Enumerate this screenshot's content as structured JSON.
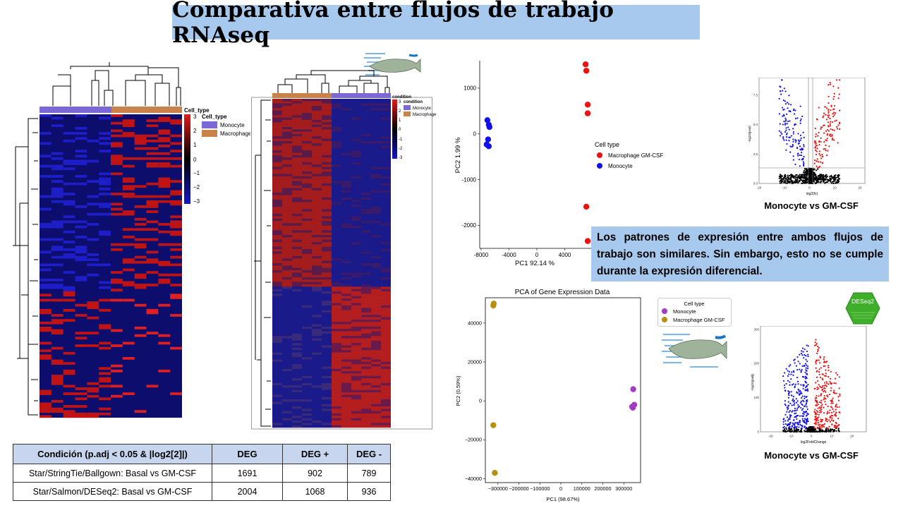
{
  "title": "Comparativa entre flujos de trabajo RNAseq",
  "heatmap1": {
    "legend_title": "Cell_type",
    "annotation_title": "Cell_type",
    "annotation_items": [
      "Monocyte",
      "Macrophage"
    ],
    "scale_ticks": [
      "3",
      "2",
      "1",
      "0",
      "−1",
      "−2",
      "−3"
    ],
    "colors": {
      "monocyte": "#7b68d6",
      "macrophage": "#c9834a",
      "high": "#e11b1b",
      "low": "#1616c4",
      "mid": "#000000"
    }
  },
  "heatmap2": {
    "legend_title": "condition",
    "annotation_title": "condition",
    "annotation_items": [
      "Monocyte",
      "Macrophage"
    ],
    "scale_ticks": [
      "3",
      "2",
      "1",
      "0",
      "-1",
      "-2",
      "-3"
    ]
  },
  "pca1": {
    "chart_data": {
      "type": "scatter",
      "xlabel": "PC1 92.14 %",
      "ylabel": "PC2 1.99 %",
      "x_ticks": [
        "-8000",
        "-4000",
        "0",
        "4000"
      ],
      "y_ticks": [
        "1000",
        "0",
        "-1000",
        "-2000"
      ],
      "xlim": [
        -8200,
        7800
      ],
      "ylim": [
        -2500,
        1600
      ],
      "legend_title": "Cell type",
      "series": [
        {
          "name": "Macrophage GM-CSF",
          "color": "#ee1111",
          "x": [
            7000,
            7100,
            7300,
            7300,
            7100,
            7300
          ],
          "y": [
            1520,
            1380,
            640,
            450,
            -1590,
            -2340
          ]
        },
        {
          "name": "Monocyte",
          "color": "#1111ee",
          "x": [
            -7100,
            -6900,
            -6800,
            -7000,
            -7200,
            -6900
          ],
          "y": [
            300,
            200,
            150,
            -120,
            -230,
            -270
          ]
        }
      ]
    }
  },
  "volcano1": {
    "caption": "Monocyte vs GM-CSF",
    "chart_data": {
      "type": "scatter",
      "xlabel": "log2(fc)",
      "ylabel": "-log10(pval)",
      "x_ticks": [
        "-20",
        "-10",
        "0",
        "10",
        "20"
      ],
      "y_ticks": [
        "0.0",
        "2.5",
        "5.0",
        "7.5"
      ],
      "xlim": [
        -20,
        22
      ],
      "ylim": [
        0,
        9
      ]
    }
  },
  "note": "Los patrones de expresión entre ambos flujos de trabajo son similares. Sin embargo, esto no se cumple durante la expresión diferencial.",
  "pca2": {
    "chart_data": {
      "type": "scatter",
      "title": "PCA of Gene Expression Data",
      "xlabel": "PC1 (98.67%)",
      "ylabel": "PC2 (0.59%)",
      "x_ticks": [
        "−300000",
        "−200000",
        "−100000",
        "0",
        "100000",
        "200000",
        "300000"
      ],
      "y_ticks": [
        "40000",
        "20000",
        "0",
        "−20000",
        "−40000"
      ],
      "xlim": [
        -360000,
        380000
      ],
      "ylim": [
        -42000,
        53000
      ],
      "legend_title": "Cell type",
      "series": [
        {
          "name": "Monocyte",
          "color": "#a23bc4",
          "x": [
            345000,
            350000,
            340000,
            343000
          ],
          "y": [
            6000,
            -2000,
            -3000,
            -3500
          ]
        },
        {
          "name": "Macrophage GM-CSF",
          "color": "#b8900f",
          "x": [
            -320000,
            -322000,
            -322000,
            -315000
          ],
          "y": [
            50000,
            49000,
            -12500,
            -37000
          ]
        }
      ]
    }
  },
  "volcano2": {
    "caption": "Monocyte vs GM-CSF",
    "badge": "DESeq2",
    "chart_data": {
      "type": "scatter",
      "xlabel": "log2FoldChange",
      "ylabel": "-log10(padj)",
      "x_ticks": [
        "-20",
        "-10",
        "0",
        "10",
        "20"
      ],
      "y_ticks": [
        "0",
        "100",
        "200",
        "300"
      ],
      "xlim": [
        -25,
        27
      ],
      "ylim": [
        0,
        310
      ]
    }
  },
  "table": {
    "headers": [
      "Condición (p.adj < 0.05 & |log2[2]|)",
      "DEG",
      "DEG +",
      "DEG -"
    ],
    "rows": [
      [
        "Star/StringTie/Ballgown: Basal vs GM-CSF",
        "1691",
        "902",
        "789"
      ],
      [
        "Star/Salmon/DESeq2: Basal vs GM-CSF",
        "2004",
        "1068",
        "936"
      ]
    ]
  }
}
